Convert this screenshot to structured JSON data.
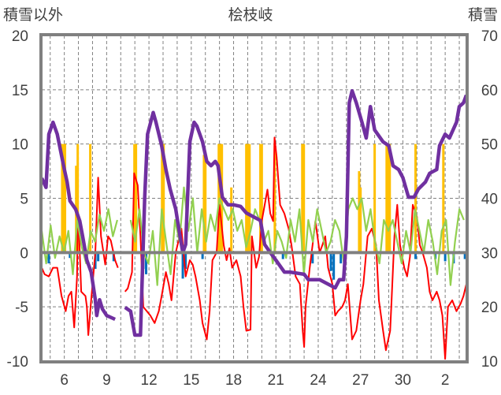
{
  "chart_data": {
    "type": "line",
    "title": "桧枝岐",
    "ylabel_left": "積雪以外",
    "ylabel_right": "積雪",
    "ylim_left": [
      -10,
      20
    ],
    "ylim_right": [
      10,
      70
    ],
    "yticks_left": [
      "-10",
      "-5",
      "0",
      "5",
      "10",
      "15",
      "20"
    ],
    "yticks_right": [
      "10",
      "20",
      "30",
      "40",
      "50",
      "60",
      "70"
    ],
    "xlim_days": [
      4.4,
      34.5
    ],
    "xticks": [
      {
        "day": 6,
        "label": "6"
      },
      {
        "day": 9,
        "label": "9"
      },
      {
        "day": 12,
        "label": "12"
      },
      {
        "day": 15,
        "label": "15"
      },
      {
        "day": 18,
        "label": "18"
      },
      {
        "day": 21,
        "label": "21"
      },
      {
        "day": 24,
        "label": "24"
      },
      {
        "day": 27,
        "label": "27"
      },
      {
        "day": 30,
        "label": "30"
      },
      {
        "day": 33,
        "label": "2"
      }
    ],
    "grid": "dashed, daily vertical and every 5 units horizontal",
    "colors": {
      "snow": "#7030A0",
      "temp": "#FF0000",
      "green": "#92D050",
      "orange": "#FFC000",
      "blue": "#0070C0",
      "frame": "#808080"
    },
    "series": [
      {
        "name": "snow_depth",
        "axis": "right",
        "color": "#7030A0",
        "points": [
          [
            4.4,
            43.7
          ],
          [
            4.7,
            42
          ],
          [
            4.9,
            51.8
          ],
          [
            5.2,
            54
          ],
          [
            5.5,
            51.8
          ],
          [
            6,
            45.3
          ],
          [
            6.2,
            43
          ],
          [
            6.4,
            39.5
          ],
          [
            6.8,
            38
          ],
          [
            7.1,
            35.8
          ],
          [
            7.3,
            33
          ],
          [
            7.6,
            28.6
          ],
          [
            7.9,
            26.4
          ],
          [
            8.2,
            21.3
          ],
          [
            8.3,
            18.4
          ],
          [
            8.5,
            21.3
          ],
          [
            8.7,
            19.6
          ],
          [
            9,
            18.4
          ],
          [
            9.6,
            17.7
          ],
          null,
          [
            10.3,
            19.9
          ],
          [
            10.7,
            19.2
          ],
          [
            11,
            14.8
          ],
          [
            11.4,
            14.8
          ],
          [
            11.7,
            40.2
          ],
          [
            11.9,
            51.8
          ],
          [
            12.3,
            55.8
          ],
          [
            12.5,
            54
          ],
          [
            12.9,
            49.7
          ],
          [
            13.2,
            45.3
          ],
          [
            13.5,
            41.7
          ],
          [
            13.9,
            38
          ],
          [
            14.2,
            33
          ],
          [
            14.4,
            30
          ],
          [
            14.6,
            31.5
          ],
          [
            14.9,
            50.4
          ],
          [
            15.2,
            54
          ],
          [
            15.4,
            53.3
          ],
          [
            15.8,
            50.4
          ],
          [
            16.1,
            46.8
          ],
          [
            16.4,
            46
          ],
          [
            16.7,
            46.8
          ],
          [
            16.9,
            46
          ],
          [
            17.2,
            40.2
          ],
          [
            17.6,
            38.8
          ],
          [
            18,
            38.8
          ],
          [
            18.5,
            38.5
          ],
          [
            18.9,
            37.3
          ],
          [
            19.4,
            36.6
          ],
          [
            19.9,
            35.9
          ],
          [
            20.2,
            31.5
          ],
          [
            20.6,
            30
          ],
          [
            21,
            28.6
          ],
          [
            21.6,
            26.4
          ],
          [
            22,
            26.4
          ],
          [
            23,
            26
          ],
          [
            23.3,
            25
          ],
          [
            24.1,
            25
          ],
          [
            24.9,
            23.9
          ],
          [
            25.2,
            23.5
          ],
          [
            25.5,
            25
          ],
          [
            25.8,
            25
          ],
          [
            26,
            33
          ],
          [
            26.2,
            57.6
          ],
          [
            26.4,
            59.8
          ],
          [
            26.7,
            57.6
          ],
          [
            27.1,
            54
          ],
          [
            27.4,
            51.1
          ],
          [
            27.7,
            56.9
          ],
          [
            28,
            52.6
          ],
          [
            28.6,
            50.4
          ],
          [
            29,
            49.7
          ],
          [
            29.3,
            46
          ],
          [
            29.7,
            45.3
          ],
          [
            30,
            43.8
          ],
          [
            30.4,
            40.2
          ],
          [
            30.8,
            40.2
          ],
          [
            31.1,
            41.7
          ],
          [
            31.6,
            43
          ],
          [
            31.9,
            44.6
          ],
          [
            32.4,
            45.3
          ],
          [
            32.6,
            49.7
          ],
          [
            33,
            51.8
          ],
          [
            33.3,
            51.1
          ],
          [
            33.8,
            54
          ],
          [
            34,
            56.9
          ],
          [
            34.3,
            57.6
          ],
          [
            34.5,
            59
          ]
        ]
      },
      {
        "name": "temperature",
        "axis": "left",
        "color": "#FF0000",
        "points": [
          [
            4.4,
            -1.4
          ],
          [
            4.6,
            -2
          ],
          [
            4.9,
            -2.2
          ],
          [
            5.2,
            -1.4
          ],
          [
            5.5,
            -1.4
          ],
          [
            5.8,
            -4
          ],
          [
            6.1,
            -5.4
          ],
          [
            6.3,
            -4
          ],
          [
            6.5,
            -3.6
          ],
          [
            6.7,
            -6.9
          ],
          [
            6.9,
            -2.2
          ],
          [
            6.95,
            2.9
          ],
          [
            7.05,
            1.5
          ],
          [
            7.2,
            -3.6
          ],
          [
            7.5,
            -4
          ],
          [
            7.6,
            -5
          ],
          [
            7.7,
            -7.6
          ],
          [
            7.9,
            -4.4
          ],
          [
            8.2,
            0
          ],
          [
            8.4,
            6.9
          ],
          [
            8.6,
            1.5
          ],
          [
            8.9,
            -1.1
          ],
          [
            9.1,
            1.5
          ],
          [
            9.3,
            1.1
          ],
          [
            9.6,
            -0.7
          ],
          [
            9.8,
            -1.4
          ],
          null,
          [
            10.3,
            -3.6
          ],
          [
            10.5,
            -3.3
          ],
          [
            10.8,
            -1.8
          ],
          [
            10.95,
            7.3
          ],
          [
            11.2,
            6.2
          ],
          [
            11.4,
            1.5
          ],
          [
            11.6,
            -5
          ],
          [
            12.1,
            -5.8
          ],
          [
            12.4,
            -6.5
          ],
          [
            12.7,
            -5.4
          ],
          [
            12.9,
            -4
          ],
          [
            13.2,
            -1.8
          ],
          [
            13.4,
            -2.9
          ],
          [
            13.6,
            -4.4
          ],
          [
            13.9,
            0
          ],
          [
            14.3,
            2.2
          ],
          [
            14.6,
            -2.2
          ],
          [
            14.9,
            -0.7
          ],
          [
            15.1,
            -1.1
          ],
          [
            15.3,
            -2.2
          ],
          [
            15.6,
            -4.4
          ],
          [
            15.8,
            -6.5
          ],
          [
            16.1,
            -8
          ],
          [
            16.3,
            -5.4
          ],
          [
            16.5,
            -0.7
          ],
          [
            16.8,
            0
          ],
          [
            17.0,
            4.4
          ],
          [
            17.3,
            0.7
          ],
          [
            17.5,
            -0.7
          ],
          [
            17.7,
            0.4
          ],
          [
            17.9,
            -1.4
          ],
          [
            18.2,
            -0.7
          ],
          [
            18.5,
            -2.2
          ],
          [
            18.7,
            -5
          ],
          [
            18.9,
            -7.2
          ],
          [
            19.2,
            -7.1
          ],
          [
            19.3,
            1.5
          ],
          [
            19.6,
            -1.4
          ],
          [
            19.8,
            -0.4
          ],
          [
            20.0,
            2.9
          ],
          [
            20.4,
            5.8
          ],
          [
            20.6,
            3.6
          ],
          [
            20.8,
            2.9
          ],
          [
            20.9,
            10.6
          ],
          [
            21.05,
            8.8
          ],
          [
            21.3,
            4.4
          ],
          [
            21.6,
            3.6
          ],
          [
            21.9,
            2.2
          ],
          [
            22.1,
            0.7
          ],
          [
            22.4,
            -2.2
          ],
          [
            22.7,
            -2.9
          ],
          [
            22.9,
            -7.2
          ],
          [
            23.0,
            -8.7
          ],
          [
            23.1,
            -5
          ],
          [
            23.4,
            -1.4
          ],
          [
            23.6,
            0.7
          ],
          [
            23.8,
            2.9
          ],
          [
            24.1,
            0
          ],
          [
            24.3,
            0.7
          ],
          [
            24.5,
            1.5
          ],
          [
            24.7,
            -1.4
          ],
          [
            25.0,
            -2.9
          ],
          [
            25.2,
            -5.8
          ],
          [
            25.4,
            -5.4
          ],
          [
            25.7,
            -5
          ],
          [
            25.9,
            -4.4
          ],
          [
            26.1,
            -2.9
          ],
          [
            26.4,
            -8
          ],
          [
            26.7,
            -7.2
          ],
          [
            27.0,
            -4.4
          ],
          [
            27.2,
            -2.9
          ],
          [
            27.5,
            1.5
          ],
          [
            27.8,
            2.2
          ],
          [
            28.1,
            0.7
          ],
          [
            28.3,
            -4.4
          ],
          [
            28.6,
            -7.2
          ],
          [
            28.8,
            -9
          ],
          [
            29.1,
            -7.2
          ],
          [
            29.2,
            -4.4
          ],
          [
            29.4,
            1.5
          ],
          [
            29.6,
            4.4
          ],
          [
            29.8,
            0.7
          ],
          [
            30.1,
            -1.4
          ],
          [
            30.3,
            -2.2
          ],
          [
            30.5,
            -0.4
          ],
          [
            30.7,
            4.4
          ],
          [
            31.0,
            3.3
          ],
          [
            31.2,
            0.7
          ],
          [
            31.4,
            0
          ],
          [
            31.7,
            -1.4
          ],
          [
            31.9,
            -3.6
          ],
          [
            32.1,
            -4.4
          ],
          [
            32.4,
            -3.6
          ],
          [
            32.6,
            -4.4
          ],
          [
            32.8,
            -5.8
          ],
          [
            33.0,
            -9.8
          ],
          [
            33.2,
            -5
          ],
          [
            33.5,
            -4.4
          ],
          [
            33.8,
            -5.4
          ],
          [
            34.1,
            -4.7
          ],
          [
            34.3,
            -4
          ],
          [
            34.5,
            -2.9
          ]
        ]
      },
      {
        "name": "green_series",
        "axis": "left",
        "color": "#92D050",
        "start_day": 4.4,
        "step_day": 0.315,
        "values": [
          2,
          -1,
          2.5,
          -0.5,
          1.5,
          0,
          2,
          -2,
          3,
          0.5,
          -1,
          2,
          1,
          3.5,
          2,
          4,
          1.5,
          3,
          null,
          null,
          3,
          1,
          4,
          0,
          -1,
          2,
          -3,
          4,
          1,
          -2,
          3,
          1,
          6,
          2,
          5,
          0,
          4,
          1,
          3.5,
          2,
          5,
          4,
          3,
          4,
          2,
          3,
          0.5,
          2,
          4,
          3,
          1,
          2,
          -1,
          2,
          1,
          -0.5,
          3,
          1,
          4,
          -2,
          3,
          1,
          4,
          2,
          0,
          1,
          3,
          2,
          -1,
          4,
          5,
          4,
          5,
          2,
          4,
          1,
          -1,
          3,
          2,
          3,
          1,
          -1,
          2,
          0,
          4,
          2,
          0,
          3,
          1,
          -2,
          2,
          3,
          -3,
          1,
          4,
          3
        ]
      },
      {
        "name": "orange_bars",
        "axis": "left",
        "color": "#FFC000",
        "bars": [
          [
            5.85,
            10
          ],
          [
            5.95,
            10
          ],
          [
            6.05,
            10
          ],
          [
            6.84,
            8
          ],
          [
            6.95,
            10
          ],
          [
            7.84,
            10
          ],
          [
            10.97,
            10
          ],
          [
            11.08,
            10
          ],
          [
            12.93,
            10
          ],
          [
            13.04,
            10
          ],
          [
            15.9,
            9
          ],
          [
            16.0,
            9
          ],
          [
            16.95,
            10
          ],
          [
            17.06,
            10
          ],
          [
            17.17,
            10
          ],
          [
            17.84,
            6
          ],
          [
            18.9,
            10
          ],
          [
            19.0,
            10
          ],
          [
            19.13,
            10
          ],
          [
            19.9,
            10
          ],
          [
            20.0,
            10
          ],
          [
            20.92,
            10
          ],
          [
            22.87,
            10
          ],
          [
            22.98,
            10
          ],
          [
            26.9,
            7.5
          ],
          [
            27.0,
            6
          ],
          [
            28.0,
            10
          ],
          [
            28.85,
            10
          ],
          [
            28.96,
            10
          ],
          [
            29.07,
            10
          ],
          [
            30.9,
            10
          ],
          [
            32.87,
            10
          ]
        ]
      },
      {
        "name": "blue_bars",
        "axis": "left",
        "color": "#0070C0",
        "bars": [
          [
            4.9,
            -1
          ],
          [
            6.4,
            -0.5
          ],
          [
            8.2,
            -1.5
          ],
          [
            8.4,
            -0.8
          ],
          [
            9.5,
            -0.8
          ],
          [
            11.6,
            -1.5
          ],
          [
            11.8,
            -2
          ],
          [
            14.4,
            -2.4
          ],
          [
            14.6,
            -1.5
          ],
          [
            15.8,
            -0.6
          ],
          [
            21.5,
            -0.6
          ],
          [
            23.6,
            -1
          ],
          [
            24.9,
            -1.7
          ],
          [
            25.1,
            -2.5
          ],
          [
            25.6,
            -1
          ],
          [
            30.9,
            -0.6
          ],
          [
            32.3,
            -0.6
          ],
          [
            33.0,
            -0.8
          ],
          [
            33.6,
            -1
          ],
          [
            34.4,
            -0.6
          ]
        ]
      }
    ]
  }
}
